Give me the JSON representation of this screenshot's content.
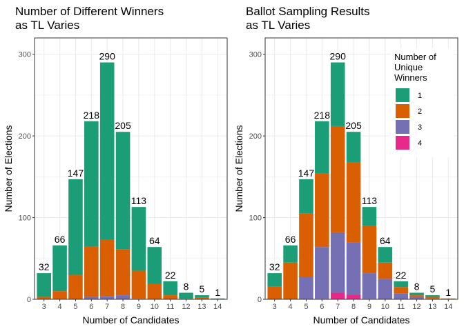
{
  "chart_data": [
    {
      "type": "bar",
      "stacked": true,
      "title": [
        "Number of Different Winners",
        "as TL Varies"
      ],
      "xlabel": "Number of Candidates",
      "ylabel": "Number of Elections",
      "ylim": [
        0,
        320
      ],
      "yticks": [
        0,
        100,
        200,
        300
      ],
      "grid": true,
      "categories": [
        "3",
        "4",
        "5",
        "6",
        "7",
        "8",
        "9",
        "10",
        "11",
        "12",
        "13",
        "14"
      ],
      "totals": [
        32,
        66,
        147,
        218,
        290,
        205,
        113,
        64,
        22,
        8,
        5,
        1
      ],
      "series": [
        {
          "key": "4",
          "color": "#E7298A",
          "values": [
            0,
            0,
            0,
            0,
            0,
            0,
            0,
            0,
            0,
            0,
            0,
            0
          ]
        },
        {
          "key": "3",
          "color": "#7570B3",
          "values": [
            0,
            0,
            0,
            3,
            4,
            5,
            1,
            0,
            0,
            0,
            0,
            0
          ]
        },
        {
          "key": "2",
          "color": "#D95F02",
          "values": [
            3,
            10,
            30,
            62,
            69,
            56,
            34,
            19,
            5,
            1,
            2,
            0
          ]
        },
        {
          "key": "1",
          "color": "#1B9E77",
          "values": [
            29,
            56,
            117,
            153,
            217,
            144,
            78,
            45,
            17,
            7,
            3,
            1
          ]
        }
      ]
    },
    {
      "type": "bar",
      "stacked": true,
      "title": [
        "Ballot Sampling Results",
        "as TL Varies"
      ],
      "xlabel": "Number of Candidates",
      "ylabel": "Number of Elections",
      "ylim": [
        0,
        320
      ],
      "yticks": [
        0,
        100,
        200,
        300
      ],
      "grid": true,
      "legend_position": "top-right",
      "legend_title": [
        "Number of",
        " Unique",
        " Winners"
      ],
      "legend_items": [
        {
          "label": "1",
          "color": "#1B9E77"
        },
        {
          "label": "2",
          "color": "#D95F02"
        },
        {
          "label": "3",
          "color": "#7570B3"
        },
        {
          "label": "4",
          "color": "#E7298A"
        }
      ],
      "categories": [
        "3",
        "4",
        "5",
        "6",
        "7",
        "8",
        "9",
        "10",
        "11",
        "12",
        "13",
        "14"
      ],
      "totals": [
        32,
        66,
        147,
        218,
        290,
        205,
        113,
        64,
        22,
        8,
        5,
        1
      ],
      "series": [
        {
          "key": "4",
          "color": "#E7298A",
          "values": [
            0,
            0,
            0,
            1,
            8,
            6,
            1,
            0,
            0,
            0,
            0,
            0
          ]
        },
        {
          "key": "3",
          "color": "#7570B3",
          "values": [
            0,
            0,
            27,
            63,
            74,
            64,
            31,
            25,
            7,
            3,
            1,
            0
          ]
        },
        {
          "key": "2",
          "color": "#D95F02",
          "values": [
            16,
            45,
            78,
            90,
            130,
            98,
            58,
            20,
            8,
            2,
            2,
            1
          ]
        },
        {
          "key": "1",
          "color": "#1B9E77",
          "values": [
            16,
            21,
            42,
            64,
            78,
            37,
            23,
            19,
            7,
            3,
            2,
            0
          ]
        }
      ]
    }
  ]
}
